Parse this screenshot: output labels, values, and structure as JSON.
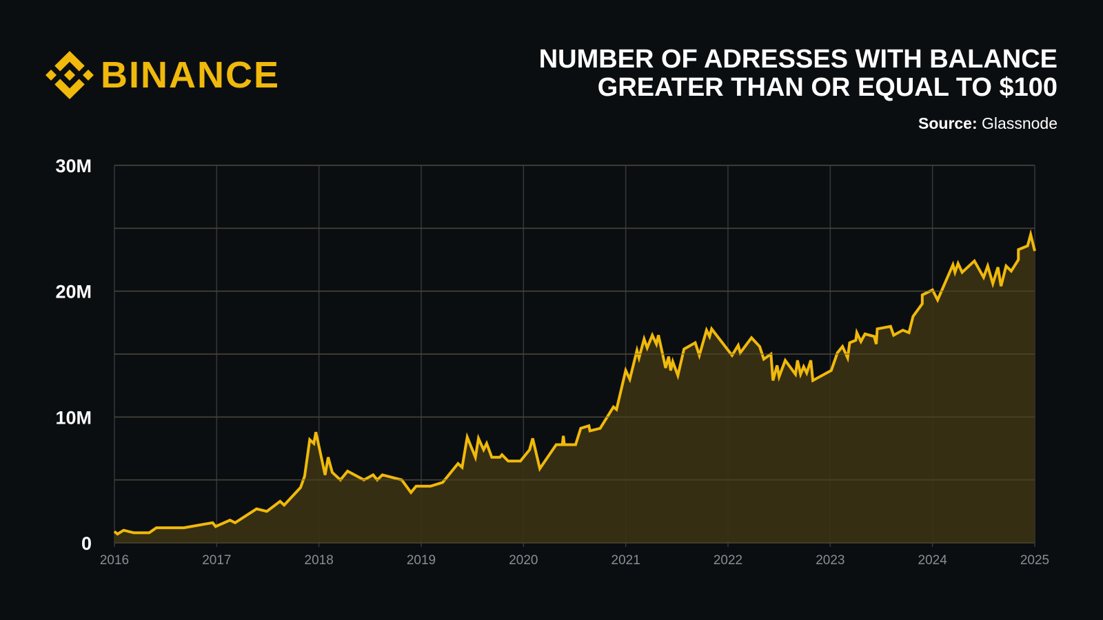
{
  "brand": {
    "name": "BINANCE",
    "color": "#f0b90b"
  },
  "header": {
    "title_line1": "NUMBER OF ADRESSES WITH BALANCE",
    "title_line2": "GREATER THAN OR EQUAL TO $100",
    "source_label": "Source:",
    "source_value": "Glassnode"
  },
  "chart_data": {
    "type": "area",
    "title": "NUMBER OF ADRESSES WITH BALANCE GREATER THAN OR EQUAL TO $100",
    "xlabel": "",
    "ylabel": "",
    "xlim": [
      2016,
      2025
    ],
    "ylim": [
      0,
      30
    ],
    "x_ticks": [
      "2016",
      "2017",
      "2018",
      "2019",
      "2020",
      "2021",
      "2022",
      "2023",
      "2024",
      "2025"
    ],
    "y_ticks": [
      {
        "v": 0,
        "label": "0"
      },
      {
        "v": 10,
        "label": "10M"
      },
      {
        "v": 20,
        "label": "20M"
      },
      {
        "v": 30,
        "label": "30M"
      }
    ],
    "grid_y": [
      0,
      5,
      10,
      15,
      20,
      25,
      30
    ],
    "grid": true,
    "line_color": "#f0b90b",
    "fill_color": "#3b3213",
    "unit": "millions of addresses",
    "points": [
      [
        2016.0,
        0.9
      ],
      [
        2016.03,
        0.7
      ],
      [
        2016.09,
        1.0
      ],
      [
        2016.19,
        0.8
      ],
      [
        2016.34,
        0.8
      ],
      [
        2016.41,
        1.2
      ],
      [
        2016.68,
        1.2
      ],
      [
        2016.96,
        1.6
      ],
      [
        2016.99,
        1.3
      ],
      [
        2017.13,
        1.8
      ],
      [
        2017.18,
        1.6
      ],
      [
        2017.39,
        2.7
      ],
      [
        2017.49,
        2.5
      ],
      [
        2017.62,
        3.3
      ],
      [
        2017.66,
        3.0
      ],
      [
        2017.82,
        4.4
      ],
      [
        2017.86,
        5.3
      ],
      [
        2017.91,
        8.2
      ],
      [
        2017.95,
        7.9
      ],
      [
        2017.97,
        8.8
      ],
      [
        2018.06,
        5.4
      ],
      [
        2018.09,
        6.8
      ],
      [
        2018.13,
        5.6
      ],
      [
        2018.21,
        5.0
      ],
      [
        2018.28,
        5.7
      ],
      [
        2018.44,
        5.0
      ],
      [
        2018.53,
        5.4
      ],
      [
        2018.57,
        5.0
      ],
      [
        2018.62,
        5.4
      ],
      [
        2018.81,
        5.0
      ],
      [
        2018.9,
        4.0
      ],
      [
        2018.95,
        4.5
      ],
      [
        2019.09,
        4.5
      ],
      [
        2019.21,
        4.8
      ],
      [
        2019.36,
        6.3
      ],
      [
        2019.4,
        6.0
      ],
      [
        2019.45,
        8.4
      ],
      [
        2019.53,
        6.8
      ],
      [
        2019.56,
        8.3
      ],
      [
        2019.61,
        7.4
      ],
      [
        2019.64,
        7.9
      ],
      [
        2019.69,
        6.8
      ],
      [
        2019.77,
        6.8
      ],
      [
        2019.79,
        7.0
      ],
      [
        2019.85,
        6.5
      ],
      [
        2019.97,
        6.5
      ],
      [
        2020.06,
        7.4
      ],
      [
        2020.09,
        8.3
      ],
      [
        2020.16,
        5.9
      ],
      [
        2020.32,
        7.8
      ],
      [
        2020.38,
        7.8
      ],
      [
        2020.39,
        8.5
      ],
      [
        2020.4,
        7.8
      ],
      [
        2020.51,
        7.8
      ],
      [
        2020.56,
        9.1
      ],
      [
        2020.64,
        9.3
      ],
      [
        2020.65,
        8.9
      ],
      [
        2020.75,
        9.1
      ],
      [
        2020.88,
        10.8
      ],
      [
        2020.91,
        10.6
      ],
      [
        2021.0,
        13.7
      ],
      [
        2021.04,
        13.0
      ],
      [
        2021.11,
        15.3
      ],
      [
        2021.13,
        14.7
      ],
      [
        2021.18,
        16.2
      ],
      [
        2021.21,
        15.5
      ],
      [
        2021.26,
        16.5
      ],
      [
        2021.3,
        15.8
      ],
      [
        2021.32,
        16.5
      ],
      [
        2021.39,
        13.9
      ],
      [
        2021.42,
        14.8
      ],
      [
        2021.44,
        13.7
      ],
      [
        2021.46,
        14.4
      ],
      [
        2021.51,
        13.3
      ],
      [
        2021.57,
        15.4
      ],
      [
        2021.68,
        15.9
      ],
      [
        2021.72,
        14.9
      ],
      [
        2021.79,
        16.9
      ],
      [
        2021.82,
        16.4
      ],
      [
        2021.84,
        17.0
      ],
      [
        2022.04,
        14.9
      ],
      [
        2022.1,
        15.7
      ],
      [
        2022.12,
        15.1
      ],
      [
        2022.23,
        16.3
      ],
      [
        2022.31,
        15.6
      ],
      [
        2022.35,
        14.6
      ],
      [
        2022.42,
        15.0
      ],
      [
        2022.44,
        12.9
      ],
      [
        2022.48,
        14.1
      ],
      [
        2022.5,
        13.2
      ],
      [
        2022.56,
        14.5
      ],
      [
        2022.66,
        13.4
      ],
      [
        2022.68,
        14.5
      ],
      [
        2022.71,
        13.4
      ],
      [
        2022.74,
        14.0
      ],
      [
        2022.77,
        13.5
      ],
      [
        2022.81,
        14.5
      ],
      [
        2022.83,
        12.9
      ],
      [
        2023.01,
        13.7
      ],
      [
        2023.07,
        15.1
      ],
      [
        2023.12,
        15.6
      ],
      [
        2023.17,
        14.7
      ],
      [
        2023.19,
        15.9
      ],
      [
        2023.25,
        16.1
      ],
      [
        2023.26,
        16.7
      ],
      [
        2023.3,
        16.0
      ],
      [
        2023.34,
        16.6
      ],
      [
        2023.43,
        16.4
      ],
      [
        2023.45,
        15.8
      ],
      [
        2023.46,
        17.0
      ],
      [
        2023.59,
        17.2
      ],
      [
        2023.62,
        16.5
      ],
      [
        2023.71,
        16.9
      ],
      [
        2023.77,
        16.7
      ],
      [
        2023.81,
        18.0
      ],
      [
        2023.9,
        19.0
      ],
      [
        2023.9,
        19.7
      ],
      [
        2024.0,
        20.1
      ],
      [
        2024.05,
        19.3
      ],
      [
        2024.2,
        22.1
      ],
      [
        2024.22,
        21.5
      ],
      [
        2024.25,
        22.2
      ],
      [
        2024.29,
        21.5
      ],
      [
        2024.41,
        22.4
      ],
      [
        2024.5,
        21.1
      ],
      [
        2024.54,
        22.0
      ],
      [
        2024.59,
        20.6
      ],
      [
        2024.64,
        21.9
      ],
      [
        2024.67,
        20.4
      ],
      [
        2024.72,
        22.0
      ],
      [
        2024.77,
        21.6
      ],
      [
        2024.84,
        22.5
      ],
      [
        2024.84,
        23.3
      ],
      [
        2024.93,
        23.6
      ],
      [
        2024.96,
        24.5
      ],
      [
        2025.0,
        23.2
      ]
    ]
  }
}
